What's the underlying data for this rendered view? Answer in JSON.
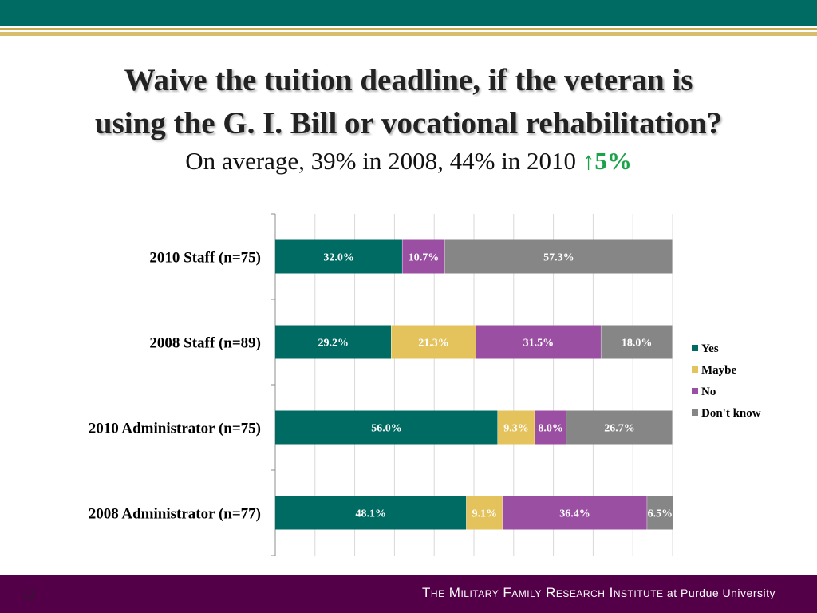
{
  "header": {
    "title_line1": "Waive the tuition deadline, if the veteran is",
    "title_line2": "using the G. I. Bill or vocational rehabilitation?",
    "subtitle_text": "On average, 39% in 2008, 44% in 2010 ",
    "subtitle_arrow": "↑",
    "subtitle_change": "5%"
  },
  "footer": {
    "page_number": "12",
    "org_main": "The Military Family Research Institute",
    "org_suffix": " at Purdue University"
  },
  "colors": {
    "accent_teal": "#006b63",
    "gold": "#c8a84b",
    "footer_purple": "#540048",
    "increase_green": "#1ca34a"
  },
  "chart_data": {
    "type": "bar",
    "orientation": "horizontal",
    "stacked": true,
    "percent_stacked": true,
    "categories": [
      "2010 Staff (n=75)",
      "2008 Staff (n=89)",
      "2010 Administrator (n=75)",
      "2008 Administrator (n=77)"
    ],
    "series": [
      {
        "name": "Yes",
        "color": "#006b63",
        "values": [
          32.0,
          29.2,
          56.0,
          48.1
        ],
        "labels": [
          "32.0%",
          "29.2%",
          "56.0%",
          "48.1%"
        ]
      },
      {
        "name": "Maybe",
        "color": "#e4c25c",
        "values": [
          0,
          21.3,
          9.3,
          9.1
        ],
        "labels": [
          "",
          "21.3%",
          "9.3%",
          "9.1%"
        ]
      },
      {
        "name": "No",
        "color": "#9b4fa2",
        "values": [
          10.7,
          31.5,
          8.0,
          36.4
        ],
        "labels": [
          "10.7%",
          "31.5%",
          "8.0%",
          "36.4%"
        ]
      },
      {
        "name": "Don't know",
        "color": "#868686",
        "values": [
          57.3,
          18.0,
          26.7,
          6.5
        ],
        "labels": [
          "57.3%",
          "18.0%",
          "26.7%",
          "6.5%"
        ]
      }
    ],
    "xlim": [
      0,
      100
    ],
    "grid": true,
    "legend_position": "right"
  }
}
